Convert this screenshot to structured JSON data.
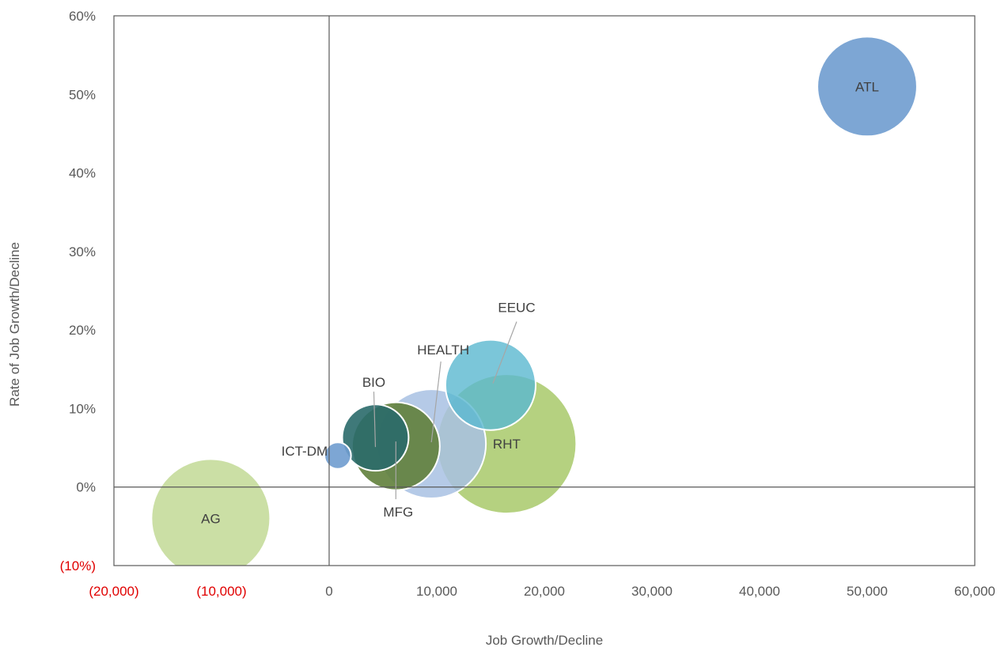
{
  "chart_data": {
    "type": "bubble",
    "xlabel": "Job Growth/Decline",
    "ylabel": "Rate of Job Growth/Decline",
    "xlim": [
      -20000,
      60000
    ],
    "ylim": [
      -0.1,
      0.6
    ],
    "grid": false,
    "x_ticks": [
      {
        "value": -20000,
        "label": "(20,000)",
        "color": "#e00000"
      },
      {
        "value": -10000,
        "label": "(10,000)",
        "color": "#e00000"
      },
      {
        "value": 0,
        "label": "0",
        "color": "#595959"
      },
      {
        "value": 10000,
        "label": "10,000",
        "color": "#595959"
      },
      {
        "value": 20000,
        "label": "20,000",
        "color": "#595959"
      },
      {
        "value": 30000,
        "label": "30,000",
        "color": "#595959"
      },
      {
        "value": 40000,
        "label": "40,000",
        "color": "#595959"
      },
      {
        "value": 50000,
        "label": "50,000",
        "color": "#595959"
      },
      {
        "value": 60000,
        "label": "60,000",
        "color": "#595959"
      }
    ],
    "y_ticks": [
      {
        "value": -0.1,
        "label": "(10%)",
        "color": "#e00000"
      },
      {
        "value": 0,
        "label": "0%",
        "color": "#595959"
      },
      {
        "value": 0.1,
        "label": "10%",
        "color": "#595959"
      },
      {
        "value": 0.2,
        "label": "20%",
        "color": "#595959"
      },
      {
        "value": 0.3,
        "label": "30%",
        "color": "#595959"
      },
      {
        "value": 0.4,
        "label": "40%",
        "color": "#595959"
      },
      {
        "value": 0.5,
        "label": "50%",
        "color": "#595959"
      },
      {
        "value": 0.6,
        "label": "60%",
        "color": "#595959"
      }
    ],
    "bubbles": [
      {
        "name": "RHT",
        "x": 16500,
        "y": 0.055,
        "size": 88000,
        "color": "#a8c96a",
        "opacity": 0.85
      },
      {
        "name": "AG",
        "x": -11000,
        "y": -0.04,
        "size": 64000,
        "color": "#c5dc9b",
        "opacity": 0.9
      },
      {
        "name": "ATL",
        "x": 50000,
        "y": 0.51,
        "size": 45000,
        "color": "#6f9ccf",
        "opacity": 0.9
      },
      {
        "name": "HEALTH",
        "x": 9500,
        "y": 0.055,
        "size": 54000,
        "color": "#a8c1e3",
        "opacity": 0.85,
        "label_pos": "above"
      },
      {
        "name": "EEUC",
        "x": 15000,
        "y": 0.13,
        "size": 37000,
        "color": "#5ab8d0",
        "opacity": 0.8,
        "label_pos": "above"
      },
      {
        "name": "MFG",
        "x": 6200,
        "y": 0.052,
        "size": 35000,
        "color": "#617f3b",
        "opacity": 0.9,
        "label_pos": "below"
      },
      {
        "name": "BIO",
        "x": 4300,
        "y": 0.063,
        "size": 20000,
        "color": "#2a6a6a",
        "opacity": 0.9,
        "label_pos": "above"
      },
      {
        "name": "ICT-DM",
        "x": 800,
        "y": 0.04,
        "size": 3200,
        "color": "#6f9ccf",
        "opacity": 0.9,
        "label_pos": "left"
      }
    ]
  }
}
